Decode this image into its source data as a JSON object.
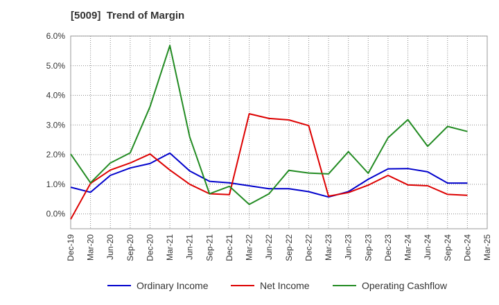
{
  "chart_data": {
    "type": "line",
    "title": "[5009]  Trend of Margin",
    "xlabel": "",
    "ylabel": "",
    "ylim": [
      -0.5,
      6.0
    ],
    "yticks": [
      "0.0%",
      "1.0%",
      "2.0%",
      "3.0%",
      "4.0%",
      "5.0%",
      "6.0%"
    ],
    "ytick_values": [
      0,
      1,
      2,
      3,
      4,
      5,
      6
    ],
    "categories": [
      "Dec-19",
      "Mar-20",
      "Jun-20",
      "Sep-20",
      "Dec-20",
      "Mar-21",
      "Jun-21",
      "Sep-21",
      "Dec-21",
      "Mar-22",
      "Jun-22",
      "Sep-22",
      "Dec-22",
      "Mar-23",
      "Jun-23",
      "Sep-23",
      "Dec-23",
      "Mar-24",
      "Jun-24",
      "Sep-24",
      "Dec-24",
      "Mar-25"
    ],
    "grid": true,
    "legend_position": "bottom",
    "series": [
      {
        "name": "Ordinary Income",
        "color": "#0000cc",
        "values": [
          0.9,
          0.73,
          1.3,
          1.55,
          1.7,
          2.05,
          1.45,
          1.1,
          1.05,
          0.95,
          0.85,
          0.85,
          0.75,
          0.57,
          0.75,
          1.17,
          1.52,
          1.53,
          1.42,
          1.04,
          1.04,
          null
        ]
      },
      {
        "name": "Net Income",
        "color": "#dd0000",
        "values": [
          -0.18,
          1.03,
          1.48,
          1.72,
          2.02,
          1.48,
          1.0,
          0.68,
          0.65,
          3.38,
          3.22,
          3.17,
          2.98,
          0.6,
          0.72,
          0.97,
          1.3,
          0.98,
          0.95,
          0.66,
          0.63,
          null
        ]
      },
      {
        "name": "Operating Cashflow",
        "color": "#228b22",
        "values": [
          2.02,
          1.05,
          1.72,
          2.06,
          3.62,
          5.68,
          2.6,
          0.68,
          0.93,
          0.32,
          0.68,
          1.47,
          1.38,
          1.35,
          2.1,
          1.37,
          2.57,
          3.18,
          2.28,
          2.95,
          2.78,
          null
        ]
      }
    ]
  }
}
